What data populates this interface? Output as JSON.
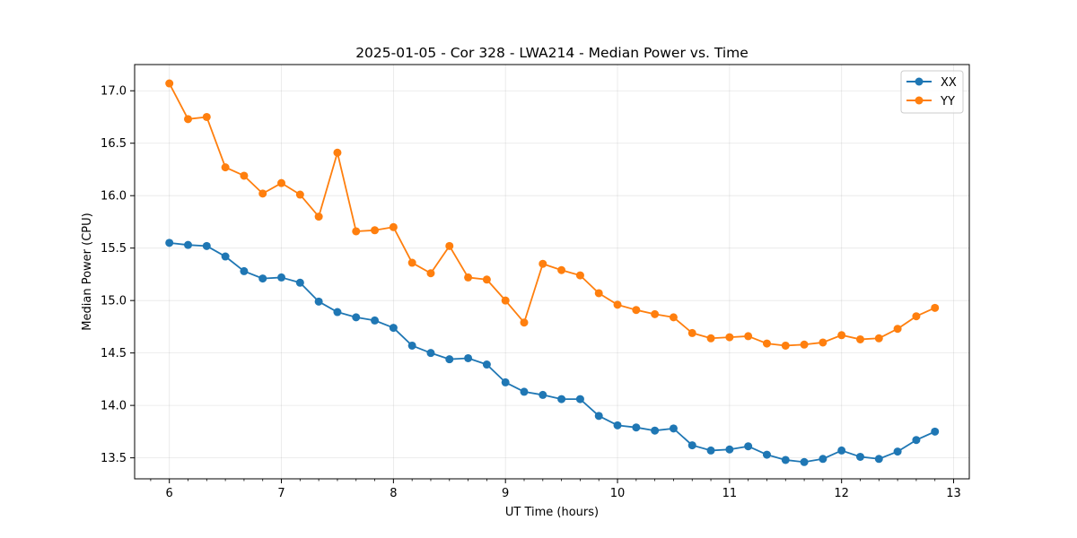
{
  "chart_data": {
    "type": "line",
    "title": "2025-01-05 - Cor 328 - LWA214 - Median Power vs. Time",
    "xlabel": "UT Time (hours)",
    "ylabel": "Median Power (CPU)",
    "xlim": [
      5.69,
      13.14
    ],
    "ylim": [
      13.3,
      17.25
    ],
    "grid": true,
    "legend_position": "top-right",
    "x_ticks": [
      6,
      7,
      8,
      9,
      10,
      11,
      12,
      13
    ],
    "x_tick_labels": [
      "6",
      "7",
      "8",
      "9",
      "10",
      "11",
      "12",
      "13"
    ],
    "y_ticks": [
      13.5,
      14.0,
      14.5,
      15.0,
      15.5,
      16.0,
      16.5,
      17.0
    ],
    "y_tick_labels": [
      "13.5",
      "14.0",
      "14.5",
      "15.0",
      "15.5",
      "16.0",
      "16.5",
      "17.0"
    ],
    "x": [
      6.0,
      6.1667,
      6.3333,
      6.5,
      6.6667,
      6.8333,
      7.0,
      7.1667,
      7.3333,
      7.5,
      7.6667,
      7.8333,
      8.0,
      8.1667,
      8.3333,
      8.5,
      8.6667,
      8.8333,
      9.0,
      9.1667,
      9.3333,
      9.5,
      9.6667,
      9.8333,
      10.0,
      10.1667,
      10.3333,
      10.5,
      10.6667,
      10.8333,
      11.0,
      11.1667,
      11.3333,
      11.5,
      11.6667,
      11.8333,
      12.0,
      12.1667,
      12.3333,
      12.5,
      12.6667,
      12.8333
    ],
    "series": [
      {
        "name": "XX",
        "color": "#1f77b4",
        "values": [
          15.55,
          15.53,
          15.52,
          15.42,
          15.28,
          15.21,
          15.22,
          15.17,
          14.99,
          14.89,
          14.84,
          14.81,
          14.74,
          14.57,
          14.5,
          14.44,
          14.45,
          14.39,
          14.22,
          14.13,
          14.1,
          14.06,
          14.06,
          13.9,
          13.81,
          13.79,
          13.76,
          13.78,
          13.62,
          13.57,
          13.58,
          13.61,
          13.53,
          13.48,
          13.46,
          13.49,
          13.57,
          13.51,
          13.49,
          13.56,
          13.67,
          13.75
        ]
      },
      {
        "name": "YY",
        "color": "#ff7f0e",
        "values": [
          17.07,
          16.73,
          16.75,
          16.27,
          16.19,
          16.02,
          16.12,
          16.01,
          15.8,
          16.41,
          15.66,
          15.67,
          15.7,
          15.36,
          15.26,
          15.52,
          15.22,
          15.2,
          15.0,
          14.79,
          15.35,
          15.29,
          15.24,
          15.07,
          14.96,
          14.91,
          14.87,
          14.84,
          14.69,
          14.64,
          14.65,
          14.66,
          14.59,
          14.57,
          14.58,
          14.6,
          14.67,
          14.63,
          14.64,
          14.73,
          14.85,
          14.93
        ]
      }
    ]
  }
}
